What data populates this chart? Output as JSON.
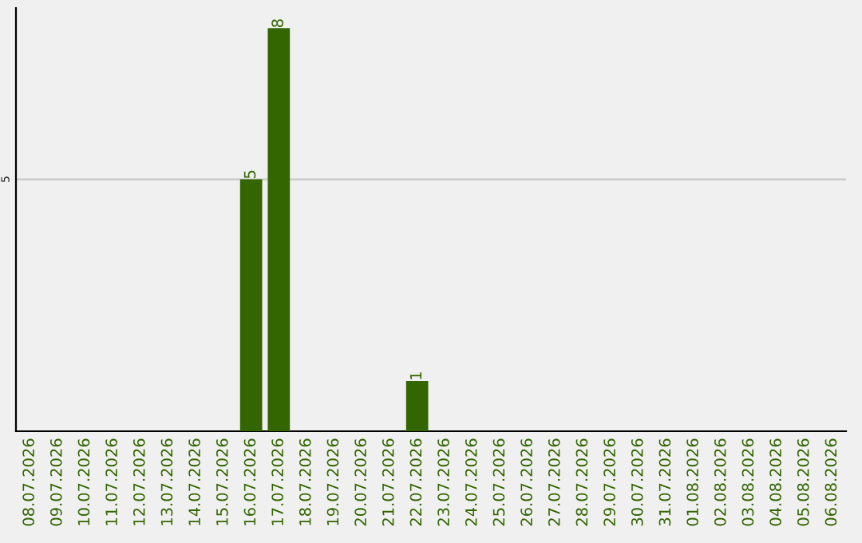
{
  "chart_data": {
    "type": "bar",
    "categories": [
      "08.07.2026",
      "09.07.2026",
      "10.07.2026",
      "11.07.2026",
      "12.07.2026",
      "13.07.2026",
      "14.07.2026",
      "15.07.2026",
      "16.07.2026",
      "17.07.2026",
      "18.07.2026",
      "19.07.2026",
      "20.07.2026",
      "21.07.2026",
      "22.07.2026",
      "23.07.2026",
      "24.07.2026",
      "25.07.2026",
      "26.07.2026",
      "27.07.2026",
      "28.07.2026",
      "29.07.2026",
      "30.07.2026",
      "31.07.2026",
      "01.08.2026",
      "02.08.2026",
      "03.08.2026",
      "04.08.2026",
      "05.08.2026",
      "06.08.2026"
    ],
    "values": [
      0,
      0,
      0,
      0,
      0,
      0,
      0,
      0,
      5,
      8,
      0,
      0,
      0,
      0,
      1,
      0,
      0,
      0,
      0,
      0,
      0,
      0,
      0,
      0,
      0,
      0,
      0,
      0,
      0,
      0
    ],
    "value_labels": [
      null,
      null,
      null,
      null,
      null,
      null,
      null,
      null,
      "5",
      "8",
      null,
      null,
      null,
      null,
      "1",
      null,
      null,
      null,
      null,
      null,
      null,
      null,
      null,
      null,
      null,
      null,
      null,
      null,
      null,
      null
    ],
    "color": "#336600",
    "ylim": [
      0,
      8.4
    ],
    "yticks": [
      5
    ],
    "grid": "y",
    "legend": false
  }
}
